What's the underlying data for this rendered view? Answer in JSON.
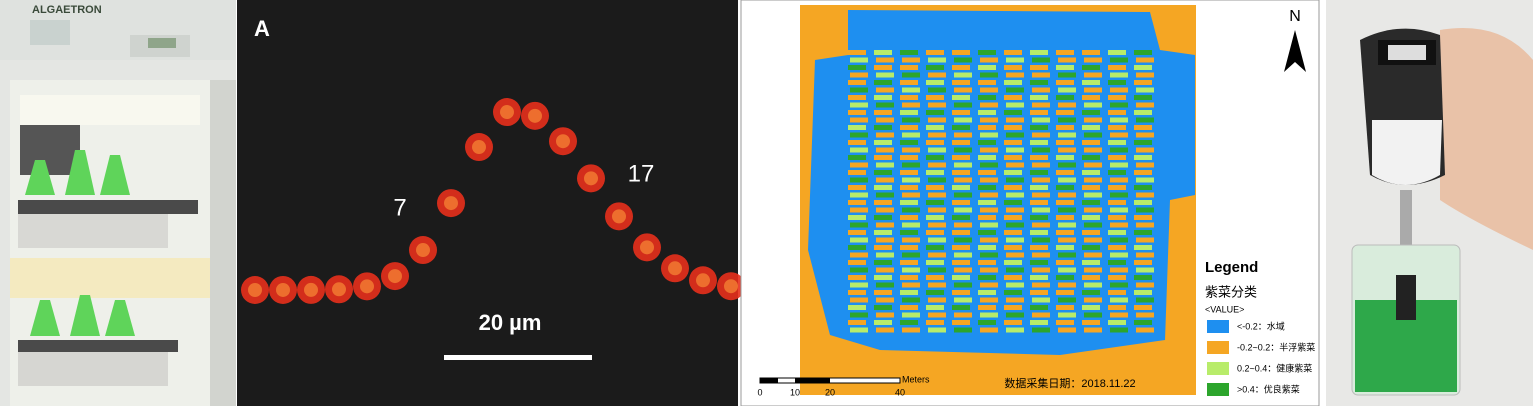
{
  "panel_1": {
    "brand": "ALGAETRON"
  },
  "panel_2": {
    "label": "A",
    "marker_left": "7",
    "marker_right": "17",
    "scale_bar": "20 µm"
  },
  "panel_3": {
    "north": "N",
    "legend": {
      "title": "Legend",
      "subtitle": "紫菜分类",
      "field": "<VALUE>",
      "items": [
        {
          "label": "<-0.2：水域",
          "color": "#1e8ff0"
        },
        {
          "label": "-0.2~0.2：半浮紫菜",
          "color": "#f5a623"
        },
        {
          "label": "0.2~0.4：健康紫菜",
          "color": "#b8ec6a"
        },
        {
          "label": ">0.4：优良紫菜",
          "color": "#2ca52c"
        }
      ]
    },
    "scale": {
      "unit": "Meters",
      "ticks": [
        "0",
        "10",
        "20",
        "40"
      ]
    },
    "date": "数据采集日期：2018.11.22"
  }
}
